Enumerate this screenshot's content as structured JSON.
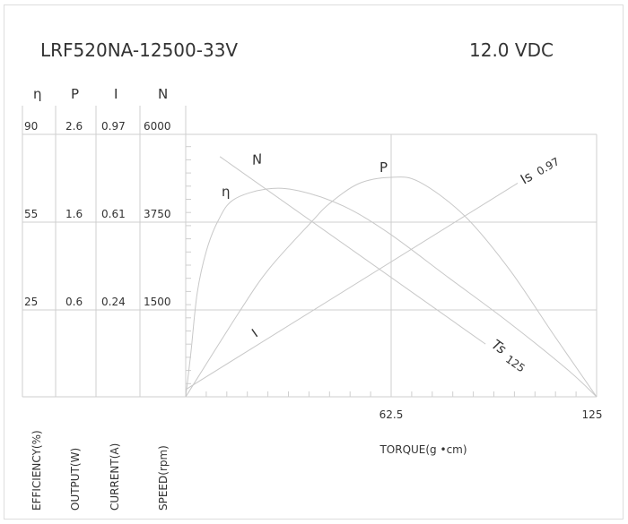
{
  "header": {
    "model": "LRF520NA-12500-33V",
    "voltage": "12.0 VDC"
  },
  "chart_data": {
    "type": "line",
    "xlabel": "TORQUE(g •cm)",
    "x_ticks": [
      "62.5",
      "125"
    ],
    "xlim": [
      0,
      125
    ],
    "axes": [
      {
        "symbol": "η",
        "label": "EFFICIENCY(%)",
        "ticks": [
          "90",
          "55",
          "25"
        ]
      },
      {
        "symbol": "P",
        "label": "OUTPUT(W)",
        "ticks": [
          "2.6",
          "1.6",
          "0.6"
        ]
      },
      {
        "symbol": "I",
        "label": "CURRENT(A)",
        "ticks": [
          "0.97",
          "0.61",
          "0.24"
        ]
      },
      {
        "symbol": "N",
        "label": "SPEED(rpm)",
        "ticks": [
          "6000",
          "3750",
          "1500"
        ]
      }
    ],
    "series": [
      {
        "name": "η",
        "axis": 0,
        "points": [
          [
            0,
            0
          ],
          [
            1.6,
            12.9
          ],
          [
            3.5,
            30.8
          ],
          [
            6.3,
            45.2
          ],
          [
            9.8,
            55.4
          ],
          [
            14.5,
            63.9
          ],
          [
            24.6,
            68.2
          ],
          [
            34.4,
            67.5
          ],
          [
            48,
            61.4
          ],
          [
            61.7,
            51.3
          ],
          [
            80,
            36
          ],
          [
            98.3,
            21.4
          ],
          [
            116.3,
            7.7
          ],
          [
            125,
            0
          ]
        ]
      },
      {
        "name": "P",
        "axis": 1,
        "points": [
          [
            0,
            0
          ],
          [
            16.4,
            0.59
          ],
          [
            25.4,
            1.07
          ],
          [
            38.2,
            1.6
          ],
          [
            43.7,
            1.81
          ],
          [
            52.7,
            2.04
          ],
          [
            62.5,
            2.11
          ],
          [
            71,
            2.06
          ],
          [
            84.6,
            1.68
          ],
          [
            98.3,
            1.07
          ],
          [
            111.9,
            0.43
          ],
          [
            125,
            0
          ]
        ]
      },
      {
        "name": "I",
        "axis": 2,
        "points": [
          [
            0,
            0.02
          ],
          [
            101,
            0.77
          ]
        ]
      },
      {
        "name": "N",
        "axis": 3,
        "points": [
          [
            10.4,
            5430
          ],
          [
            91.2,
            910
          ]
        ]
      }
    ],
    "annotations": {
      "is_label": "Is",
      "is_value": "0.97",
      "ts_label": "Ts",
      "ts_value": "125"
    },
    "grid": true
  }
}
